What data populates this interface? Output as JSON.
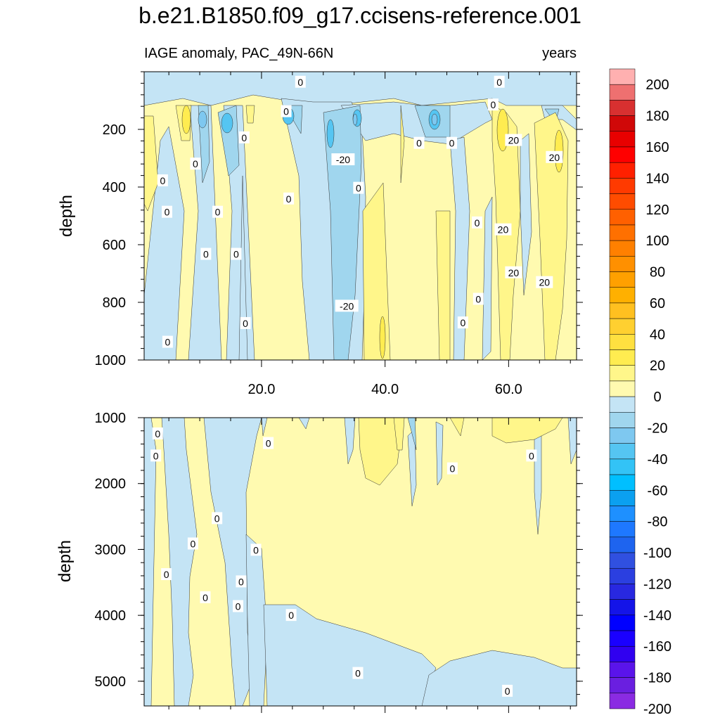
{
  "chart_data": {
    "type": "contour",
    "title": "b.e21.B1850.f09_g17.ccisens-reference.001",
    "panels": [
      {
        "id": "upper",
        "left_label": "IAGE anomaly, PAC_49N-66N",
        "right_label": "years",
        "xlabel": "",
        "ylabel": "depth",
        "xlim": [
          1,
          71
        ],
        "ylim": [
          1000,
          0
        ],
        "x_ticks": [
          20.0,
          40.0,
          60.0
        ],
        "x_tick_labels": [
          "20.0",
          "40.0",
          "60.0"
        ],
        "y_ticks": [
          200,
          400,
          600,
          800,
          1000
        ],
        "y_tick_labels": [
          "200",
          "400",
          "600",
          "800",
          "1000"
        ],
        "contour_labels": [
          {
            "text": "0",
            "x": 26.3,
            "y": 36
          },
          {
            "text": "0",
            "x": 58.5,
            "y": 36
          },
          {
            "text": "0",
            "x": 24.0,
            "y": 138
          },
          {
            "text": "0",
            "x": 57.5,
            "y": 115
          },
          {
            "text": "0",
            "x": 17.2,
            "y": 229
          },
          {
            "text": "0",
            "x": 45.5,
            "y": 248
          },
          {
            "text": "0",
            "x": 50.8,
            "y": 248
          },
          {
            "text": "-20",
            "x": 33.2,
            "y": 305
          },
          {
            "text": "20",
            "x": 60.8,
            "y": 238
          },
          {
            "text": "20",
            "x": 67.4,
            "y": 297
          },
          {
            "text": "0",
            "x": 9.3,
            "y": 320
          },
          {
            "text": "0",
            "x": 4.0,
            "y": 378
          },
          {
            "text": "0",
            "x": 35.7,
            "y": 404
          },
          {
            "text": "0",
            "x": 24.4,
            "y": 441
          },
          {
            "text": "0",
            "x": 4.7,
            "y": 487
          },
          {
            "text": "0",
            "x": 12.9,
            "y": 487
          },
          {
            "text": "0",
            "x": 54.9,
            "y": 524
          },
          {
            "text": "20",
            "x": 59.1,
            "y": 548
          },
          {
            "text": "0",
            "x": 11.0,
            "y": 633
          },
          {
            "text": "0",
            "x": 15.9,
            "y": 633
          },
          {
            "text": "20",
            "x": 60.8,
            "y": 697
          },
          {
            "text": "20",
            "x": 65.8,
            "y": 731
          },
          {
            "text": "0",
            "x": 55.1,
            "y": 789
          },
          {
            "text": "-20",
            "x": 33.8,
            "y": 813
          },
          {
            "text": "0",
            "x": 17.4,
            "y": 873
          },
          {
            "text": "0",
            "x": 52.6,
            "y": 871
          },
          {
            "text": "0",
            "x": 4.8,
            "y": 938
          }
        ]
      },
      {
        "id": "lower",
        "left_label": "",
        "right_label": "",
        "xlabel": "",
        "ylabel": "depth",
        "xlim": [
          1,
          71
        ],
        "ylim": [
          5375,
          1000
        ],
        "x_ticks": [
          20.0,
          40.0,
          60.0
        ],
        "y_ticks": [
          1000,
          2000,
          3000,
          4000,
          5000
        ],
        "y_tick_labels": [
          "1000",
          "2000",
          "3000",
          "4000",
          "5000"
        ],
        "contour_labels": [
          {
            "text": "0",
            "x": 3.2,
            "y": 1245
          },
          {
            "text": "0",
            "x": 2.9,
            "y": 1580
          },
          {
            "text": "0",
            "x": 21.1,
            "y": 1390
          },
          {
            "text": "0",
            "x": 50.9,
            "y": 1775
          },
          {
            "text": "0",
            "x": 63.7,
            "y": 1580
          },
          {
            "text": "0",
            "x": 12.8,
            "y": 2530
          },
          {
            "text": "0",
            "x": 8.9,
            "y": 2915
          },
          {
            "text": "0",
            "x": 19.1,
            "y": 3010
          },
          {
            "text": "0",
            "x": 4.6,
            "y": 3380
          },
          {
            "text": "0",
            "x": 16.7,
            "y": 3490
          },
          {
            "text": "0",
            "x": 10.9,
            "y": 3730
          },
          {
            "text": "0",
            "x": 16.2,
            "y": 3865
          },
          {
            "text": "0",
            "x": 24.8,
            "y": 4000
          },
          {
            "text": "0",
            "x": 35.6,
            "y": 4880
          },
          {
            "text": "0",
            "x": 59.8,
            "y": 5150
          }
        ]
      }
    ],
    "colorbar": {
      "levels": [
        -200,
        -190,
        -180,
        -170,
        -160,
        -150,
        -140,
        -130,
        -120,
        -110,
        -100,
        -90,
        -80,
        -70,
        -60,
        -50,
        -40,
        -30,
        -20,
        -10,
        0,
        10,
        20,
        30,
        40,
        50,
        60,
        70,
        80,
        90,
        100,
        110,
        120,
        130,
        140,
        150,
        160,
        170,
        180,
        190,
        200
      ],
      "tick_labels": [
        "200",
        "180",
        "160",
        "140",
        "120",
        "100",
        "80",
        "60",
        "40",
        "20",
        "0",
        "-20",
        "-40",
        "-60",
        "-80",
        "-100",
        "-120",
        "-140",
        "-160",
        "-180",
        "-200"
      ],
      "colors": [
        "#8a2be2",
        "#6a1fe0",
        "#5a14ea",
        "#3000f0",
        "#1a00ff",
        "#0000ff",
        "#1414e8",
        "#2828e0",
        "#2b3fe0",
        "#3050e0",
        "#1e64ef",
        "#1e78ff",
        "#1e90ff",
        "#0ba0f0",
        "#00bfff",
        "#33c3f6",
        "#55c5f2",
        "#7ec8f0",
        "#a0d6ee",
        "#c4e4f5",
        "#fffab0",
        "#fff68a",
        "#ffec50",
        "#ffe040",
        "#ffd030",
        "#ffc020",
        "#ffb000",
        "#ffa000",
        "#ff9000",
        "#ff8000",
        "#ff7000",
        "#ff6000",
        "#ff4c00",
        "#ff3a00",
        "#ff2000",
        "#ff0000",
        "#e80000",
        "#d00808",
        "#d83030",
        "#ee7070",
        "#ffb0b0"
      ]
    }
  }
}
